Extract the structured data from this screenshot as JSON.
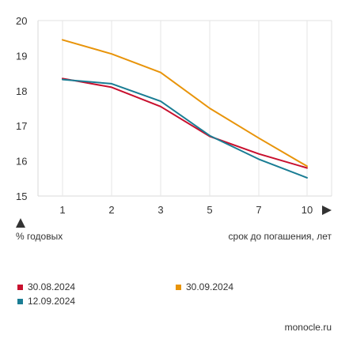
{
  "chart_data": {
    "type": "line",
    "title": "",
    "xlabel": "срок до погашения, лет",
    "ylabel": "% годовых",
    "x": [
      1,
      2,
      3,
      5,
      7,
      10
    ],
    "xticks": [
      "1",
      "2",
      "3",
      "5",
      "7",
      "10"
    ],
    "yticks": [
      "15",
      "16",
      "17",
      "18",
      "19",
      "20"
    ],
    "ylim": [
      15,
      20
    ],
    "grid": "vertical",
    "legend_position": "bottom",
    "series": [
      {
        "name": "30.08.2024",
        "color": "#c8102e",
        "values": [
          18.35,
          18.1,
          17.55,
          16.7,
          16.2,
          15.8
        ]
      },
      {
        "name": "12.09.2024",
        "color": "#1a7d94",
        "values": [
          18.32,
          18.2,
          17.7,
          16.72,
          16.05,
          15.52
        ]
      },
      {
        "name": "30.09.2024",
        "color": "#e8940a",
        "values": [
          19.45,
          19.05,
          18.52,
          17.5,
          16.65,
          15.85
        ]
      }
    ]
  },
  "source": "monocle.ru"
}
